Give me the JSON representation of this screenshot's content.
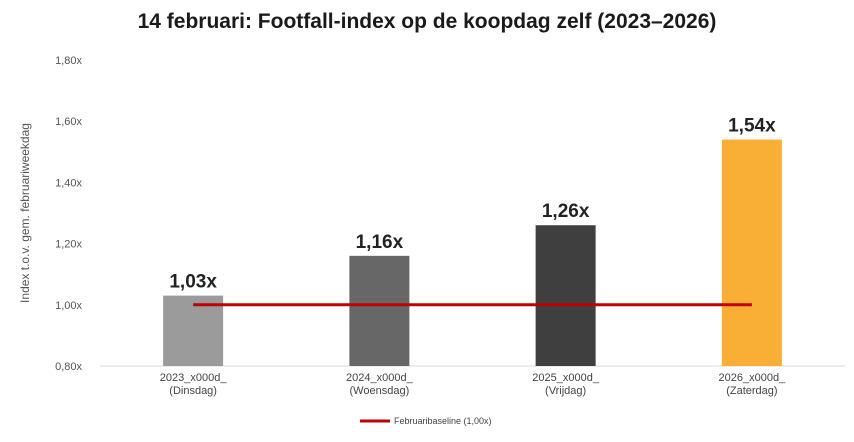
{
  "chart_data": {
    "type": "bar",
    "title": "14 februari: Footfall-index op de koopdag zelf (2023–2026)",
    "ylabel": "Index t.o.v. gem. februariweekdag",
    "xlabel": "",
    "ylim": [
      0.8,
      1.8
    ],
    "yticks": [
      "0,80x",
      "1,00x",
      "1,20x",
      "1,40x",
      "1,60x",
      "1,80x"
    ],
    "ytick_values": [
      0.8,
      1.0,
      1.2,
      1.4,
      1.6,
      1.8
    ],
    "grid": false,
    "categories": [
      {
        "line1": "2023_x000d_",
        "line2": "(Dinsdag)"
      },
      {
        "line1": "2024_x000d_",
        "line2": "(Woensdag)"
      },
      {
        "line1": "2025_x000d_",
        "line2": "(Vrijdag)"
      },
      {
        "line1": "2026_x000d_",
        "line2": "(Zaterdag)"
      }
    ],
    "values": [
      1.03,
      1.16,
      1.26,
      1.54
    ],
    "data_labels": [
      "1,03x",
      "1,16x",
      "1,26x",
      "1,54x"
    ],
    "bar_colors": [
      "#9b9b9b",
      "#676767",
      "#3f3f3f",
      "#f9ae36"
    ],
    "baseline": {
      "name": "Februaribaseline (1,00x)",
      "value": 1.0,
      "color": "#c00000"
    },
    "legend_position": "bottom"
  }
}
